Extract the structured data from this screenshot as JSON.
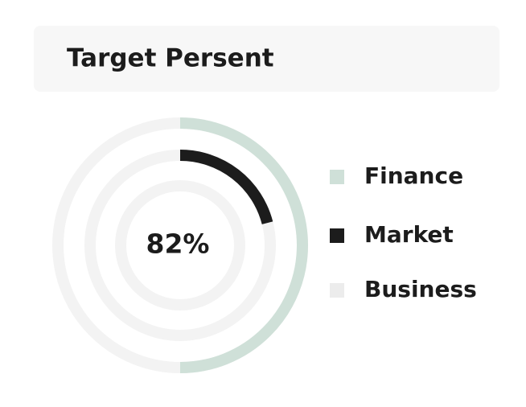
{
  "chart_data": {
    "type": "radial",
    "title": "Target Persent",
    "center_label": "82%",
    "ylim": [
      0,
      100
    ],
    "series": [
      {
        "name": "Finance",
        "color": "#cfe0d8",
        "values": [
          50
        ]
      },
      {
        "name": "Market",
        "color": "#1c1c1c",
        "values": [
          21
        ]
      },
      {
        "name": "Business",
        "color": "#ececec",
        "values": [
          0
        ]
      }
    ]
  }
}
